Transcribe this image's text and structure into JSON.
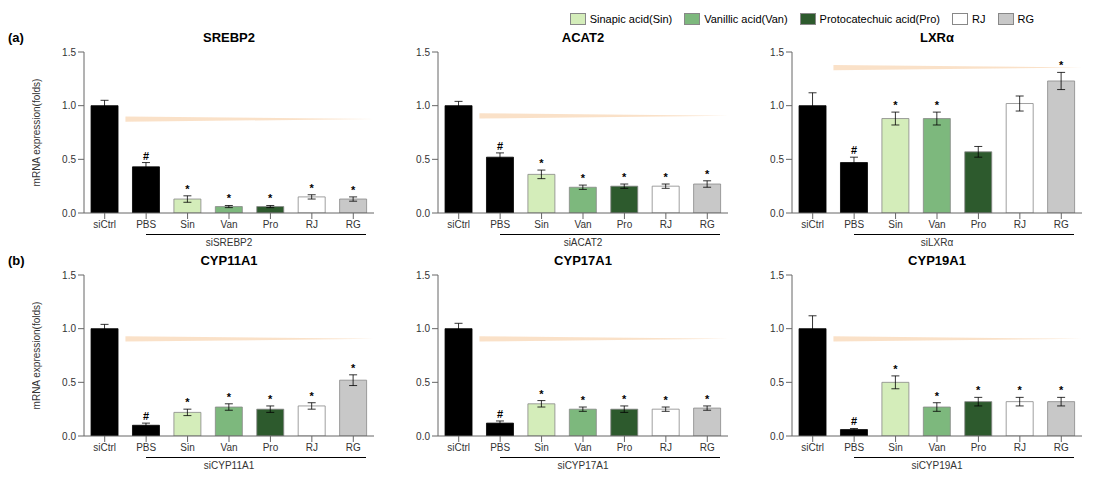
{
  "legend_entries": [
    {
      "name": "Sinapic acid(Sin)",
      "color": "#d4edba",
      "edgecolor": "#888888"
    },
    {
      "name": "Vanillic acid(Van)",
      "color": "#7db87d",
      "edgecolor": "#888888"
    },
    {
      "name": "Protocatechuic acid(Pro)",
      "color": "#2d5a2d",
      "edgecolor": "#888888"
    },
    {
      "name": "RJ",
      "color": "#ffffff",
      "edgecolor": "#888888"
    },
    {
      "name": "RG",
      "color": "#c8c8c8",
      "edgecolor": "#888888"
    }
  ],
  "chart_data": [
    {
      "type": "bar",
      "panel_label": "(a)",
      "title": "SREBP2",
      "xlabel": "siSREBP2",
      "ylabel": "mRNA expression(folds)",
      "categories": [
        "siCtrl",
        "PBS",
        "Sin",
        "Van",
        "Pro",
        "RJ",
        "RG"
      ],
      "values": [
        1.0,
        0.43,
        0.13,
        0.06,
        0.06,
        0.15,
        0.13
      ],
      "errors": [
        0.05,
        0.04,
        0.03,
        0.01,
        0.01,
        0.02,
        0.02
      ],
      "colors": [
        "#000000",
        "#000000",
        "#d4edba",
        "#7db87d",
        "#2d5a2d",
        "#ffffff",
        "#c8c8c8"
      ],
      "edgecolors": [
        "#000000",
        "#000000",
        "#888888",
        "#888888",
        "#888888",
        "#888888",
        "#888888"
      ],
      "annotations": [
        null,
        "#",
        "*",
        "*",
        "*",
        "*",
        "*"
      ],
      "ylim": [
        0,
        1.5
      ],
      "yticks": [
        {
          "value": 0,
          "label": "0.0"
        },
        0.5,
        {
          "value": 1,
          "label": "1.0"
        },
        1.5
      ],
      "arrow": {
        "color": "#f5c89a",
        "y_top": 0.9,
        "y_bottom": 0.85
      }
    },
    {
      "type": "bar",
      "title": "ACAT2",
      "xlabel": "siACAT2",
      "categories": [
        "siCtrl",
        "PBS",
        "Sin",
        "Van",
        "Pro",
        "RJ",
        "RG"
      ],
      "values": [
        1.0,
        0.52,
        0.36,
        0.24,
        0.25,
        0.25,
        0.27
      ],
      "errors": [
        0.04,
        0.04,
        0.04,
        0.02,
        0.02,
        0.02,
        0.03
      ],
      "colors": [
        "#000000",
        "#000000",
        "#d4edba",
        "#7db87d",
        "#2d5a2d",
        "#ffffff",
        "#c8c8c8"
      ],
      "edgecolors": [
        "#000000",
        "#000000",
        "#888888",
        "#888888",
        "#888888",
        "#888888",
        "#888888"
      ],
      "annotations": [
        null,
        "#",
        "*",
        "*",
        "*",
        "*",
        "*"
      ],
      "ylim": [
        0,
        1.5
      ],
      "yticks": [
        {
          "value": 0,
          "label": "0.0"
        },
        0.5,
        {
          "value": 1,
          "label": "1.0"
        },
        1.5
      ],
      "arrow": {
        "color": "#f5c89a",
        "y_top": 0.93,
        "y_bottom": 0.88
      }
    },
    {
      "type": "bar",
      "title": "LXRα",
      "xlabel": "siLXRα",
      "categories": [
        "siCtrl",
        "PBS",
        "Sin",
        "Van",
        "Pro",
        "RJ",
        "RG"
      ],
      "values": [
        1.0,
        0.47,
        0.88,
        0.88,
        0.57,
        1.02,
        1.23
      ],
      "errors": [
        0.12,
        0.05,
        0.06,
        0.06,
        0.05,
        0.07,
        0.08
      ],
      "colors": [
        "#000000",
        "#000000",
        "#d4edba",
        "#7db87d",
        "#2d5a2d",
        "#ffffff",
        "#c8c8c8"
      ],
      "edgecolors": [
        "#000000",
        "#000000",
        "#888888",
        "#888888",
        "#888888",
        "#888888",
        "#888888"
      ],
      "annotations": [
        null,
        "#",
        "*",
        "*",
        null,
        null,
        "*"
      ],
      "ylim": [
        0,
        1.5
      ],
      "yticks": [
        {
          "value": 0,
          "label": "0.0"
        },
        0.5,
        {
          "value": 1,
          "label": "1.0"
        },
        1.5
      ],
      "arrow": {
        "color": "#f5c89a",
        "y_top": 1.38,
        "y_bottom": 1.33
      }
    },
    {
      "type": "bar",
      "panel_label": "(b)",
      "title": "CYP11A1",
      "xlabel": "siCYP11A1",
      "ylabel": "mRNA expression(folds)",
      "categories": [
        "siCtrl",
        "PBS",
        "Sin",
        "Van",
        "Pro",
        "RJ",
        "RG"
      ],
      "values": [
        1.0,
        0.1,
        0.22,
        0.27,
        0.25,
        0.28,
        0.52
      ],
      "errors": [
        0.04,
        0.02,
        0.03,
        0.03,
        0.03,
        0.03,
        0.05
      ],
      "colors": [
        "#000000",
        "#000000",
        "#d4edba",
        "#7db87d",
        "#2d5a2d",
        "#ffffff",
        "#c8c8c8"
      ],
      "edgecolors": [
        "#000000",
        "#000000",
        "#888888",
        "#888888",
        "#888888",
        "#888888",
        "#888888"
      ],
      "annotations": [
        null,
        "#",
        "*",
        "*",
        "*",
        "*",
        "*"
      ],
      "ylim": [
        0,
        1.5
      ],
      "yticks": [
        {
          "value": 0,
          "label": "0.0"
        },
        0.5,
        {
          "value": 1,
          "label": "1.0"
        },
        1.5
      ],
      "arrow": {
        "color": "#f5c89a",
        "y_top": 0.93,
        "y_bottom": 0.88
      }
    },
    {
      "type": "bar",
      "title": "CYP17A1",
      "xlabel": "siCYP17A1",
      "categories": [
        "siCtrl",
        "PBS",
        "Sin",
        "Van",
        "Pro",
        "RJ",
        "RG"
      ],
      "values": [
        1.0,
        0.12,
        0.3,
        0.25,
        0.25,
        0.25,
        0.26
      ],
      "errors": [
        0.05,
        0.02,
        0.03,
        0.02,
        0.03,
        0.02,
        0.02
      ],
      "colors": [
        "#000000",
        "#000000",
        "#d4edba",
        "#7db87d",
        "#2d5a2d",
        "#ffffff",
        "#c8c8c8"
      ],
      "edgecolors": [
        "#000000",
        "#000000",
        "#888888",
        "#888888",
        "#888888",
        "#888888",
        "#888888"
      ],
      "annotations": [
        null,
        "#",
        "*",
        "*",
        "*",
        "*",
        "*"
      ],
      "ylim": [
        0,
        1.5
      ],
      "yticks": [
        {
          "value": 0,
          "label": "0.0"
        },
        0.5,
        {
          "value": 1,
          "label": "1.0"
        },
        1.5
      ],
      "arrow": {
        "color": "#f5c89a",
        "y_top": 0.93,
        "y_bottom": 0.88
      }
    },
    {
      "type": "bar",
      "title": "CYP19A1",
      "xlabel": "siCYP19A1",
      "categories": [
        "siCtrl",
        "PBS",
        "Sin",
        "Van",
        "Pro",
        "RJ",
        "RG"
      ],
      "values": [
        1.0,
        0.06,
        0.5,
        0.27,
        0.32,
        0.32,
        0.32
      ],
      "errors": [
        0.12,
        0.01,
        0.06,
        0.04,
        0.04,
        0.04,
        0.04
      ],
      "colors": [
        "#000000",
        "#000000",
        "#d4edba",
        "#7db87d",
        "#2d5a2d",
        "#ffffff",
        "#c8c8c8"
      ],
      "edgecolors": [
        "#000000",
        "#000000",
        "#888888",
        "#888888",
        "#888888",
        "#888888",
        "#888888"
      ],
      "annotations": [
        null,
        "#",
        "*",
        "*",
        "*",
        "*",
        "*"
      ],
      "ylim": [
        0,
        1.5
      ],
      "yticks": [
        {
          "value": 0,
          "label": "0.0"
        },
        0.5,
        {
          "value": 1,
          "label": "1.0"
        },
        1.5
      ],
      "arrow": {
        "color": "#f5c89a",
        "y_top": 0.93,
        "y_bottom": 0.88
      }
    }
  ]
}
